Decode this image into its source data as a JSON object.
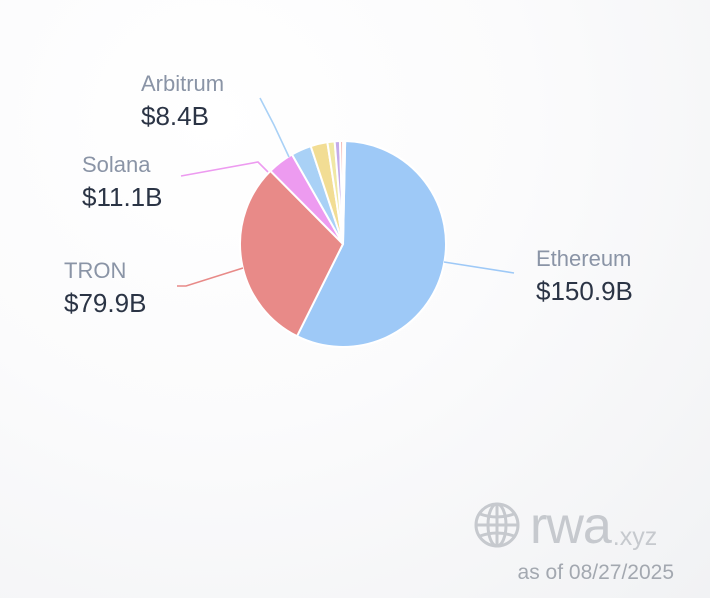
{
  "chart_data": {
    "type": "pie",
    "unit": "USD billions",
    "slices": [
      {
        "name": "Ethereum",
        "label": "$150.9B",
        "value": 150.9,
        "color": "#9ec9f7",
        "labelled": true
      },
      {
        "name": "TRON",
        "label": "$79.9B",
        "value": 79.9,
        "color": "#e88a88",
        "labelled": true
      },
      {
        "name": "Solana",
        "label": "$11.1B",
        "value": 11.1,
        "color": "#ed9bf0",
        "labelled": true
      },
      {
        "name": "Arbitrum",
        "label": "$8.4B",
        "value": 8.4,
        "color": "#a9d1f6",
        "labelled": true
      },
      {
        "value": 7.0,
        "color": "#f2dd94",
        "labelled": false
      },
      {
        "value": 3.0,
        "color": "#f0e8a5",
        "labelled": false
      },
      {
        "value": 2.2,
        "color": "#c4abe9",
        "labelled": false
      },
      {
        "value": 1.3,
        "color": "#f3b9b4",
        "labelled": false
      },
      {
        "value": 0.8,
        "color": "#bfe3cf",
        "labelled": false
      }
    ]
  },
  "watermark": {
    "brand": "rwa",
    "tld": ".xyz"
  },
  "as_of": "as of 08/27/2025"
}
